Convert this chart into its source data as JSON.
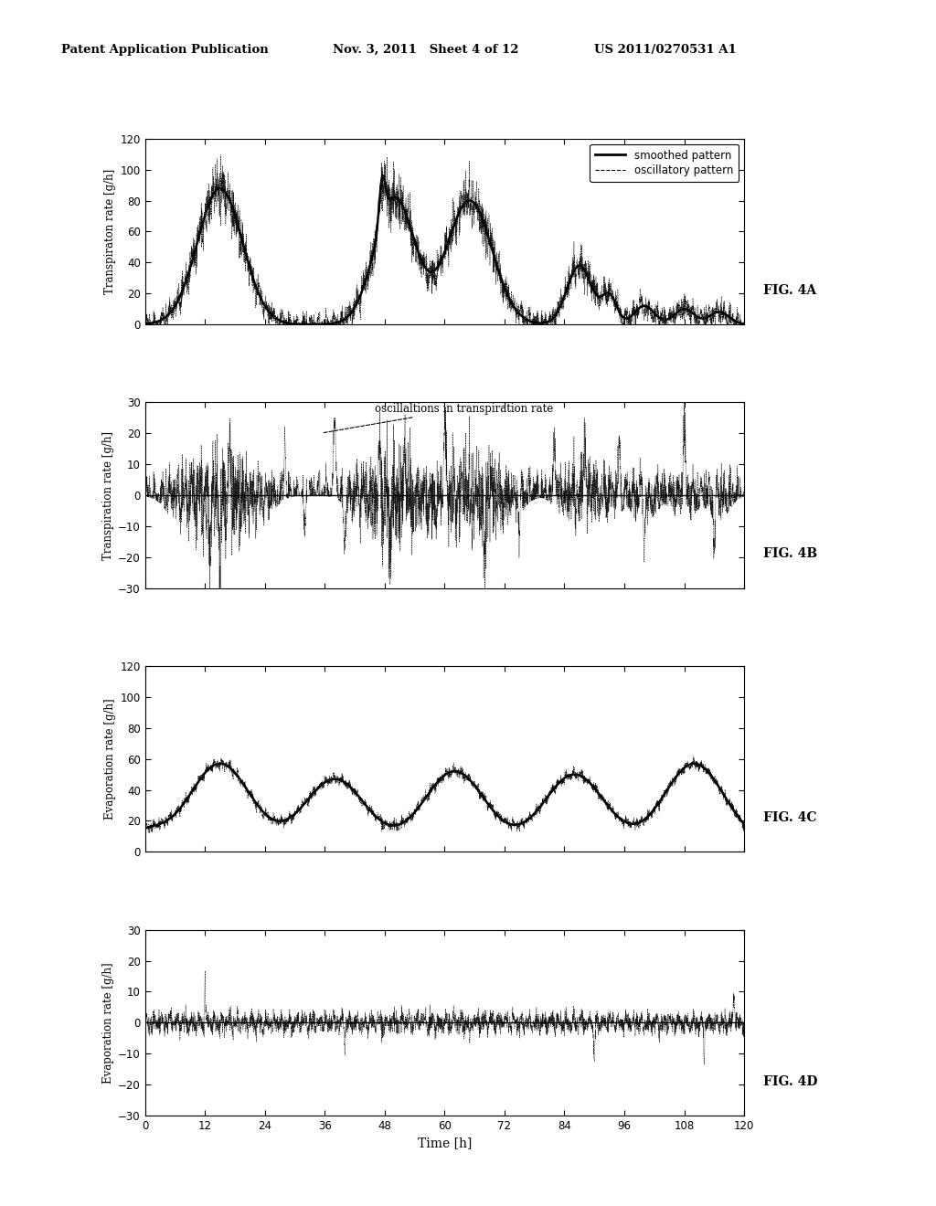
{
  "header_left": "Patent Application Publication",
  "header_mid": "Nov. 3, 2011   Sheet 4 of 12",
  "header_right": "US 2011/0270531 A1",
  "fig_labels": [
    "FIG. 4A",
    "FIG. 4B",
    "FIG. 4C",
    "FIG. 4D"
  ],
  "xlabel": "Time [h]",
  "ylabel_A": "Transpiraton rate [g/h]",
  "ylabel_B": "Transpiration rate [g/h]",
  "ylabel_C": "Evaporation rate [g/h]",
  "ylabel_D": "Evaporation rate [g/h]",
  "ylim_A": [
    0,
    120
  ],
  "ylim_B": [
    -30,
    30
  ],
  "ylim_C": [
    0,
    120
  ],
  "ylim_D": [
    -30,
    30
  ],
  "yticks_A": [
    0,
    20,
    40,
    60,
    80,
    100,
    120
  ],
  "yticks_B": [
    -30,
    -20,
    -10,
    0,
    10,
    20,
    30
  ],
  "yticks_C": [
    0,
    20,
    40,
    60,
    80,
    100,
    120
  ],
  "yticks_D": [
    -30,
    -20,
    -10,
    0,
    10,
    20,
    30
  ],
  "xlim": [
    0,
    120
  ],
  "xticks": [
    0,
    12,
    24,
    36,
    48,
    60,
    72,
    84,
    96,
    108,
    120
  ],
  "legend_A": [
    "smoothed pattern",
    "oscillatory pattern"
  ],
  "annotation_B": "oscillaltions in transpiration rate",
  "bg_color": "#ffffff",
  "line_color": "#000000",
  "seed": 42
}
